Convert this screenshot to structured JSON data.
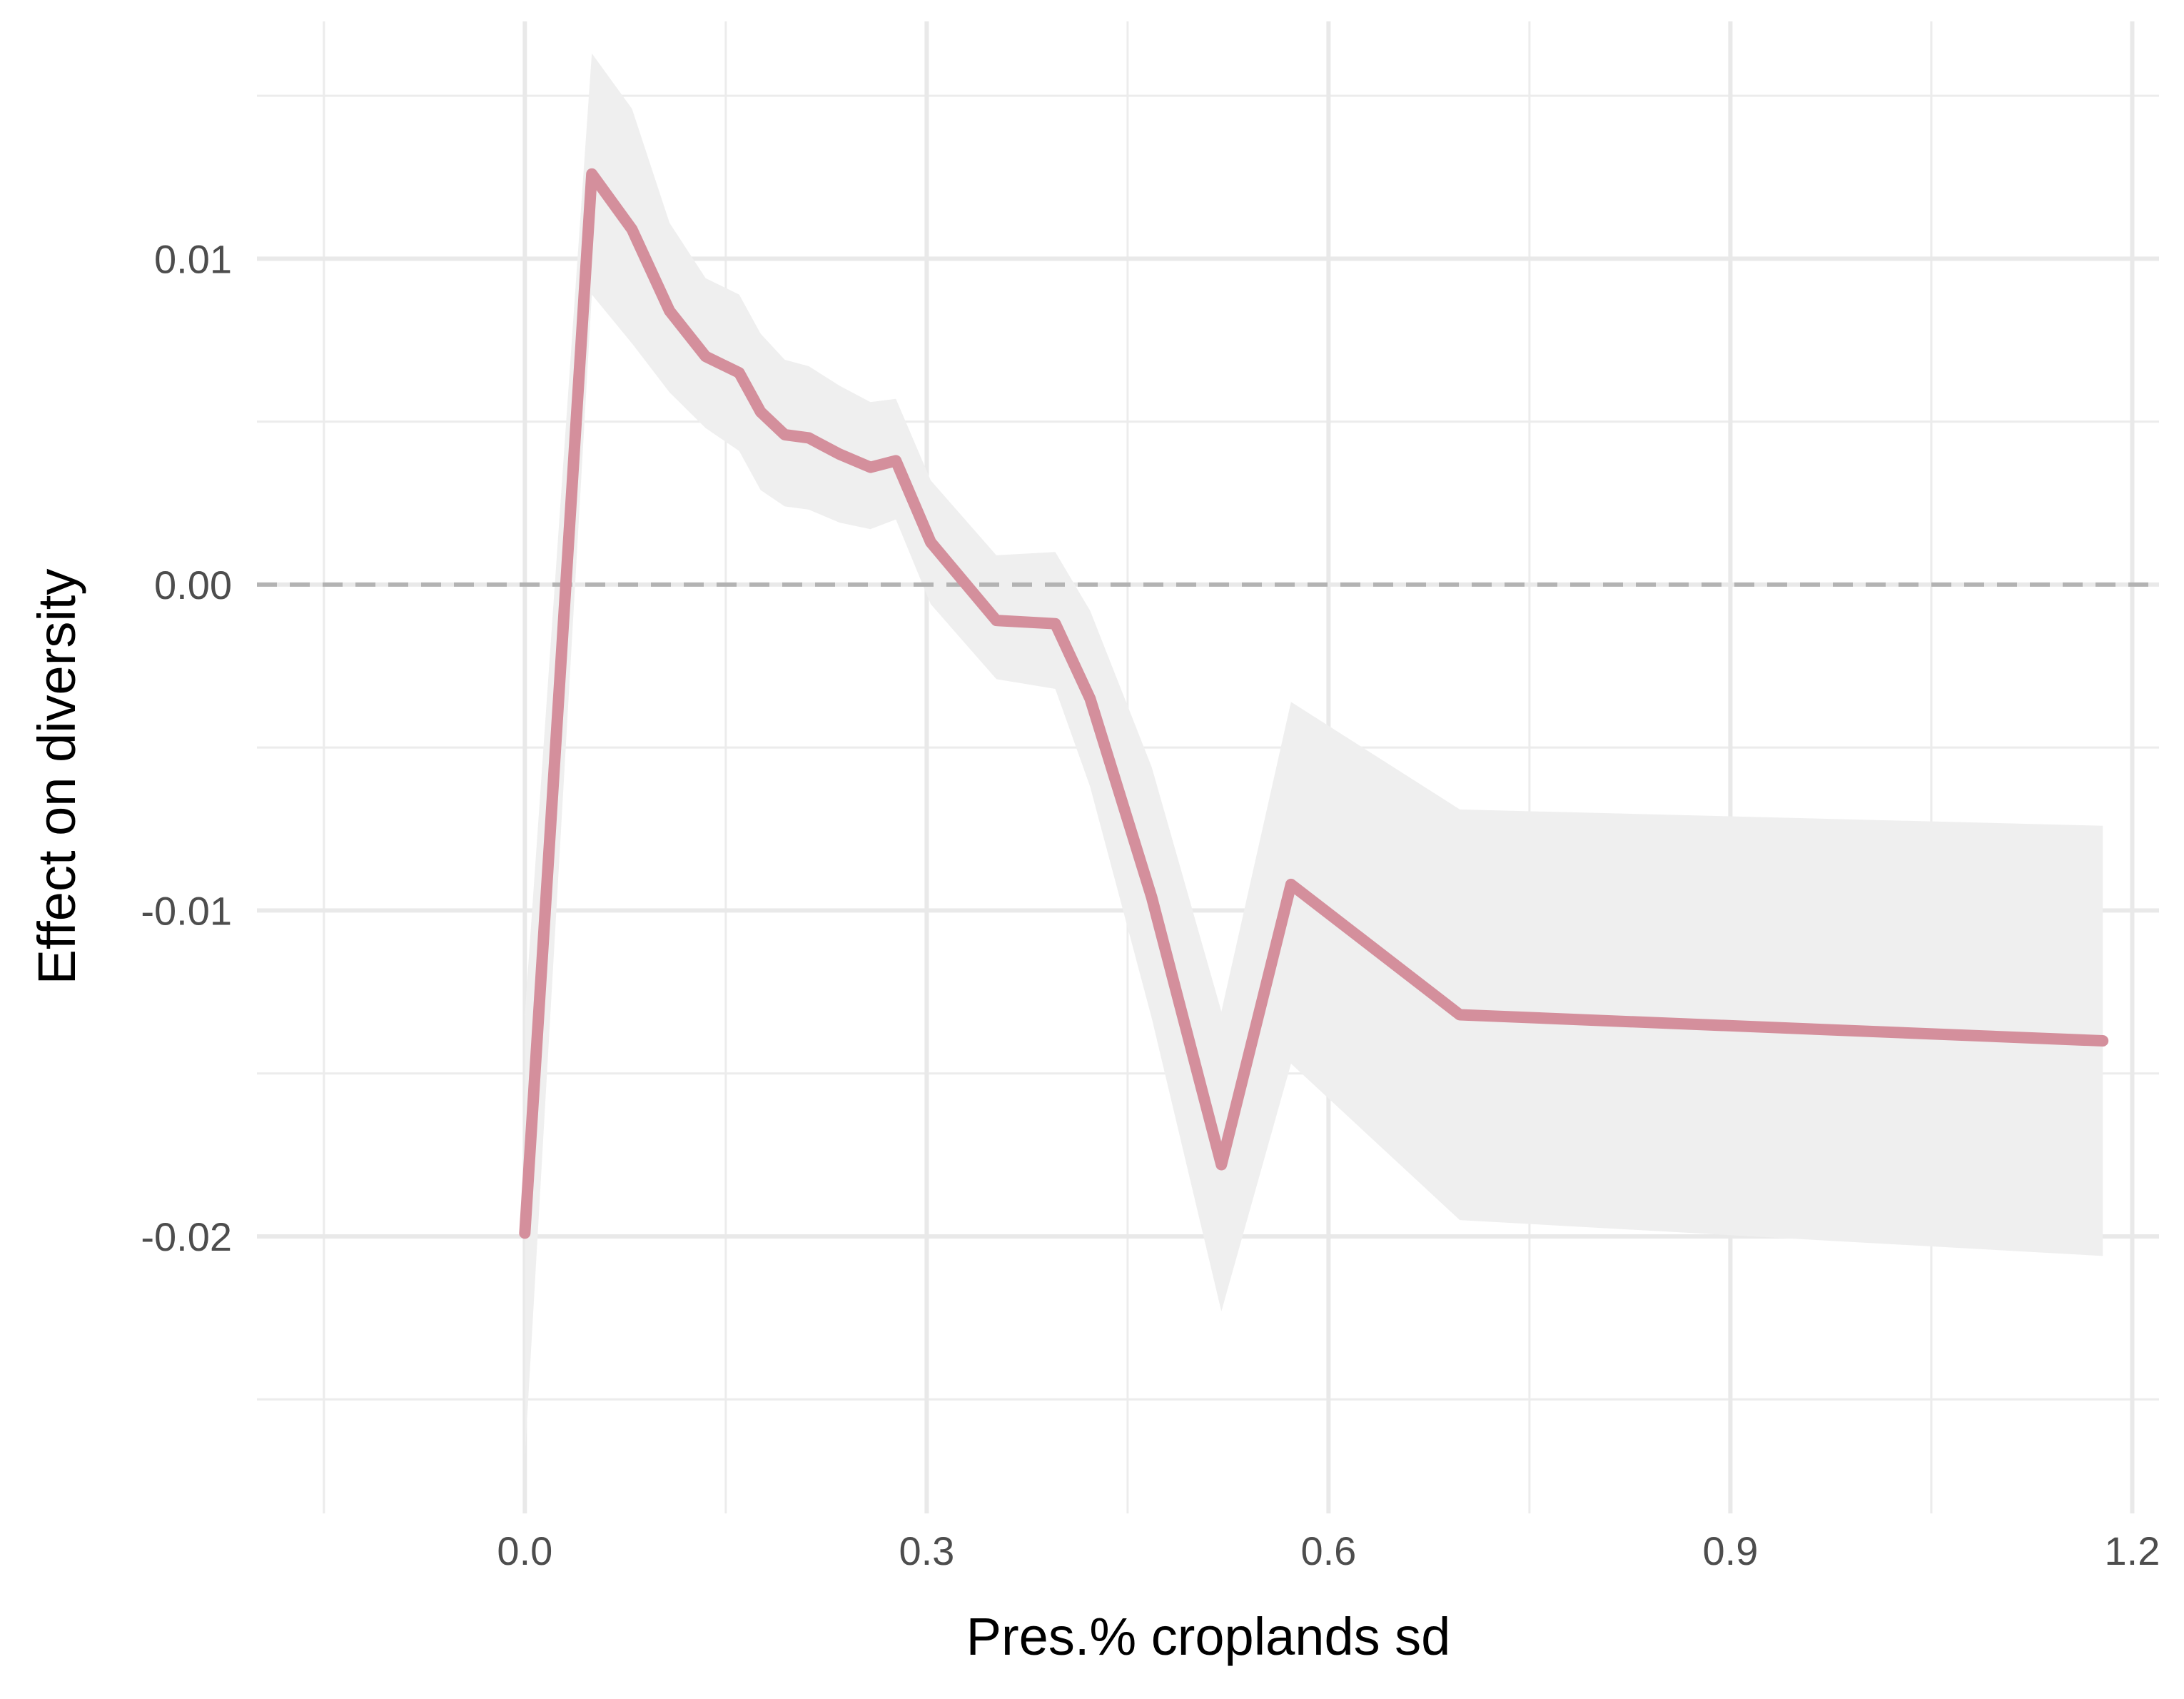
{
  "chart_data": {
    "type": "line",
    "title": "",
    "xlabel": "Pres.% croplands sd",
    "ylabel": "Effect on diversity",
    "xlim": [
      -0.2,
      1.22
    ],
    "ylim": [
      -0.0285,
      0.0175
    ],
    "x_ticks": [
      {
        "value": 0.0,
        "label": "0.0"
      },
      {
        "value": 0.3,
        "label": "0.3"
      },
      {
        "value": 0.6,
        "label": "0.6"
      },
      {
        "value": 0.9,
        "label": "0.9"
      },
      {
        "value": 1.2,
        "label": "1.2"
      }
    ],
    "y_ticks": [
      {
        "value": 0.01,
        "label": "0.01"
      },
      {
        "value": 0.0,
        "label": "0.00"
      },
      {
        "value": -0.01,
        "label": "-0.01"
      },
      {
        "value": -0.02,
        "label": "-0.02"
      }
    ],
    "x_minor": [
      -0.15,
      0.15,
      0.45,
      0.75,
      1.05
    ],
    "y_minor": [
      0.015,
      0.005,
      -0.005,
      -0.015,
      -0.025
    ],
    "grid": true,
    "reference_line": {
      "y": 0,
      "style": "dashed",
      "color": "#b3b3b3"
    },
    "line_color": "#d48f9c",
    "band_color": "#efefef",
    "series": [
      {
        "x": [
          0.0,
          0.05,
          0.08,
          0.108,
          0.135,
          0.16,
          0.176,
          0.194,
          0.212,
          0.235,
          0.258,
          0.277,
          0.303,
          0.352,
          0.396,
          0.422,
          0.468,
          0.52,
          0.572,
          0.698,
          1.178
        ],
        "y": [
          -0.0199,
          0.0126,
          0.0109,
          0.0084,
          0.007,
          0.0065,
          0.0053,
          0.0046,
          0.0045,
          0.004,
          0.0036,
          0.0038,
          0.0013,
          -0.0011,
          -0.0012,
          -0.0035,
          -0.0096,
          -0.0178,
          -0.0092,
          -0.0132,
          -0.014
        ],
        "lower": [
          -0.0268,
          0.0089,
          0.0074,
          0.0059,
          0.0048,
          0.0041,
          0.0029,
          0.0024,
          0.0023,
          0.0019,
          0.0017,
          0.002,
          -0.0006,
          -0.0029,
          -0.0032,
          -0.0062,
          -0.0133,
          -0.0223,
          -0.0147,
          -0.0195,
          -0.0206
        ],
        "upper": [
          -0.0132,
          0.0163,
          0.0146,
          0.0111,
          0.0094,
          0.0089,
          0.0077,
          0.0069,
          0.0067,
          0.0061,
          0.0056,
          0.0057,
          0.0032,
          0.0009,
          0.001,
          -0.0008,
          -0.0056,
          -0.0131,
          -0.0036,
          -0.0069,
          -0.0074
        ]
      }
    ]
  }
}
